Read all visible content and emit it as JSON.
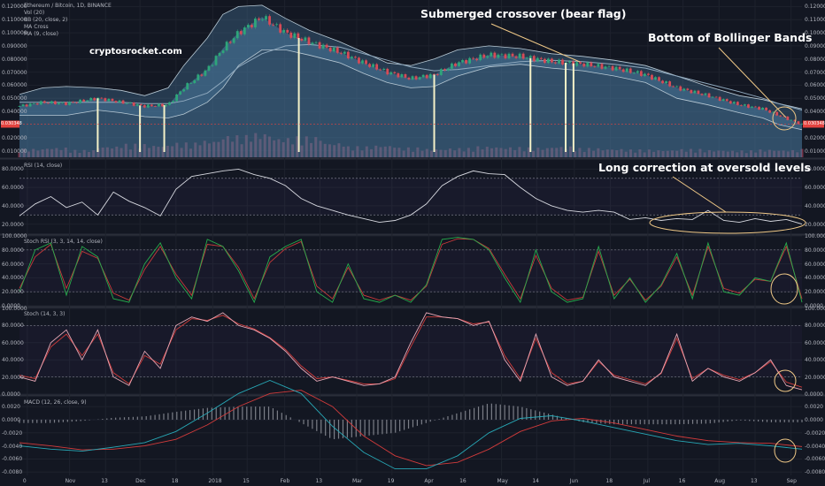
{
  "chart_data": {
    "type": "line",
    "symbol": "Ethereum / Bitcoin, 1D, BINANCE",
    "watermark": "cryptosrocket.com",
    "colors": {
      "background": "#131722",
      "separator": "#2a2e39",
      "up_candle": "#2ea67a",
      "down_candle": "#d64b57",
      "bb_fill": "#4a7ba3",
      "bb_outline": "#b8c9d4",
      "ma_line": "#8fa9be",
      "volume": "#c24a64",
      "rsi_line": "#d7d9e0",
      "stoch_rsi_k": "#27ad4d",
      "stoch_rsi_d": "#c73a3a",
      "stoch_k": "#e6a8b6",
      "stoch_d": "#d23b3b",
      "macd_line": "#27a7b5",
      "signal_line": "#d23b3b",
      "annotation_line": "#f0c987",
      "price_tag": "#e4433f"
    },
    "x_axis": {
      "labels": [
        "0",
        "Nov",
        "13",
        "Dec",
        "18",
        "2018",
        "15",
        "Feb",
        "13",
        "Mar",
        "19",
        "Apr",
        "16",
        "May",
        "14",
        "Jun",
        "18",
        "Jul",
        "16",
        "Aug",
        "13",
        "Sep"
      ],
      "positions": [
        0.01,
        0.064,
        0.11,
        0.154,
        0.2,
        0.247,
        0.291,
        0.339,
        0.384,
        0.431,
        0.476,
        0.523,
        0.568,
        0.616,
        0.661,
        0.709,
        0.755,
        0.803,
        0.848,
        0.894,
        0.94,
        0.986
      ],
      "x_range": [
        0,
        1
      ]
    },
    "panels": [
      {
        "id": "price",
        "legend": [
          "Ethereum / Bitcoin, 1D, BINANCE",
          "Vol (20)",
          "BB (20, close, 2)",
          "MA Cross",
          "MA (9, close)"
        ],
        "y_range": [
          0.005,
          0.125
        ],
        "y_ticks": [
          "0.120000",
          "0.110000",
          "0.100000",
          "0.090000",
          "0.080000",
          "0.070000",
          "0.060000",
          "0.050000",
          "0.040000",
          "0.020000",
          "0.010000"
        ],
        "y_tick_values": [
          0.12,
          0.11,
          0.1,
          0.09,
          0.08,
          0.07,
          0.06,
          0.05,
          0.04,
          0.02,
          0.01
        ],
        "last_price": "0.030348",
        "last_price_value": 0.0303,
        "close_x": [
          0.0,
          0.03,
          0.06,
          0.1,
          0.13,
          0.16,
          0.19,
          0.21,
          0.24,
          0.26,
          0.28,
          0.31,
          0.34,
          0.37,
          0.41,
          0.44,
          0.47,
          0.5,
          0.53,
          0.56,
          0.6,
          0.64,
          0.68,
          0.72,
          0.76,
          0.8,
          0.84,
          0.88,
          0.92,
          0.95,
          0.97,
          1.0
        ],
        "close": [
          0.044,
          0.047,
          0.046,
          0.05,
          0.047,
          0.044,
          0.045,
          0.058,
          0.072,
          0.088,
          0.1,
          0.112,
          0.1,
          0.093,
          0.085,
          0.077,
          0.07,
          0.065,
          0.068,
          0.077,
          0.083,
          0.082,
          0.078,
          0.076,
          0.073,
          0.068,
          0.058,
          0.052,
          0.045,
          0.042,
          0.037,
          0.03
        ],
        "bb_upper": [
          0.053,
          0.058,
          0.059,
          0.058,
          0.056,
          0.052,
          0.058,
          0.075,
          0.096,
          0.114,
          0.12,
          0.121,
          0.111,
          0.102,
          0.093,
          0.085,
          0.077,
          0.075,
          0.08,
          0.087,
          0.09,
          0.088,
          0.084,
          0.082,
          0.079,
          0.075,
          0.067,
          0.059,
          0.052,
          0.049,
          0.046,
          0.042
        ],
        "bb_lower": [
          0.037,
          0.037,
          0.037,
          0.041,
          0.039,
          0.036,
          0.035,
          0.038,
          0.047,
          0.058,
          0.075,
          0.087,
          0.087,
          0.083,
          0.077,
          0.069,
          0.062,
          0.058,
          0.059,
          0.067,
          0.074,
          0.076,
          0.073,
          0.071,
          0.067,
          0.062,
          0.05,
          0.045,
          0.039,
          0.035,
          0.03,
          0.026
        ],
        "ma_slow": [
          0.047,
          0.047,
          0.047,
          0.047,
          0.047,
          0.046,
          0.046,
          0.048,
          0.054,
          0.063,
          0.074,
          0.084,
          0.09,
          0.091,
          0.089,
          0.084,
          0.079,
          0.074,
          0.071,
          0.072,
          0.075,
          0.078,
          0.079,
          0.078,
          0.076,
          0.073,
          0.067,
          0.061,
          0.055,
          0.05,
          0.046,
          0.041
        ],
        "volume": [
          0.35,
          0.4,
          0.3,
          0.45,
          0.55,
          0.5,
          0.6,
          0.7,
          0.9,
          1.0,
          0.8,
          0.85,
          0.6,
          0.45,
          0.5,
          0.4,
          0.35,
          0.38,
          0.45,
          0.42,
          0.4,
          0.45,
          0.38,
          0.35,
          0.32,
          0.3,
          0.34,
          0.3,
          0.28,
          0.32,
          0.3,
          0.34
        ],
        "signal_lines_x": [
          0.1,
          0.154,
          0.185,
          0.357,
          0.53,
          0.653,
          0.698,
          0.708
        ],
        "annotations": [
          {
            "text": "cryptosrocket.com",
            "role": "brand"
          },
          {
            "text": "Submerged crossover (bear flag)",
            "role": "note"
          },
          {
            "text": "Bottom of Bollinger Bands",
            "role": "note"
          }
        ]
      },
      {
        "id": "rsi",
        "legend": [
          "RSI (14, close)"
        ],
        "y_range": [
          10,
          90
        ],
        "y_ticks": [
          "80.0000",
          "60.0000",
          "40.0000",
          "20.0000"
        ],
        "y_tick_values": [
          80,
          60,
          40,
          20
        ],
        "bands": [
          70,
          30
        ],
        "x": [
          0.0,
          0.02,
          0.04,
          0.06,
          0.08,
          0.1,
          0.12,
          0.14,
          0.16,
          0.18,
          0.2,
          0.22,
          0.24,
          0.26,
          0.28,
          0.3,
          0.32,
          0.34,
          0.36,
          0.38,
          0.4,
          0.42,
          0.44,
          0.46,
          0.48,
          0.5,
          0.52,
          0.54,
          0.56,
          0.58,
          0.6,
          0.62,
          0.64,
          0.66,
          0.68,
          0.7,
          0.72,
          0.74,
          0.76,
          0.78,
          0.8,
          0.82,
          0.84,
          0.86,
          0.88,
          0.9,
          0.92,
          0.94,
          0.96,
          0.98,
          1.0
        ],
        "values": [
          29,
          42,
          50,
          38,
          44,
          30,
          55,
          45,
          38,
          29,
          58,
          72,
          75,
          78,
          80,
          74,
          70,
          62,
          48,
          40,
          35,
          30,
          26,
          22,
          24,
          30,
          42,
          62,
          72,
          78,
          75,
          74,
          60,
          48,
          40,
          35,
          33,
          35,
          33,
          25,
          27,
          24,
          26,
          25,
          35,
          24,
          22,
          26,
          23,
          25,
          20
        ],
        "annotations": [
          {
            "text": "Long correction at oversold levels",
            "role": "note"
          }
        ]
      },
      {
        "id": "stoch_rsi",
        "legend": [
          "Stoch RSI (3, 3, 14, 14, close)"
        ],
        "y_range": [
          0,
          100
        ],
        "y_ticks": [
          "100.0000",
          "80.0000",
          "60.0000",
          "40.0000",
          "20.0000",
          "0.0000"
        ],
        "y_tick_values": [
          100,
          80,
          60,
          40,
          20,
          0
        ],
        "bands": [
          80,
          20
        ],
        "x": [
          0.0,
          0.02,
          0.04,
          0.06,
          0.08,
          0.1,
          0.12,
          0.14,
          0.16,
          0.18,
          0.2,
          0.22,
          0.24,
          0.26,
          0.28,
          0.3,
          0.32,
          0.34,
          0.36,
          0.38,
          0.4,
          0.42,
          0.44,
          0.46,
          0.48,
          0.5,
          0.52,
          0.54,
          0.56,
          0.58,
          0.6,
          0.62,
          0.64,
          0.66,
          0.68,
          0.7,
          0.72,
          0.74,
          0.76,
          0.78,
          0.8,
          0.82,
          0.84,
          0.86,
          0.88,
          0.9,
          0.92,
          0.94,
          0.96,
          0.98,
          1.0
        ],
        "k": [
          20,
          80,
          90,
          15,
          85,
          70,
          10,
          5,
          60,
          90,
          40,
          10,
          95,
          85,
          50,
          5,
          70,
          85,
          95,
          20,
          5,
          60,
          10,
          5,
          15,
          5,
          30,
          95,
          98,
          95,
          80,
          40,
          5,
          80,
          20,
          5,
          10,
          85,
          10,
          40,
          5,
          30,
          75,
          10,
          90,
          20,
          15,
          40,
          35,
          90,
          5
        ],
        "d": [
          25,
          70,
          88,
          25,
          78,
          68,
          18,
          8,
          52,
          85,
          45,
          15,
          88,
          85,
          55,
          10,
          62,
          82,
          92,
          28,
          10,
          55,
          15,
          8,
          15,
          8,
          28,
          88,
          96,
          95,
          82,
          45,
          10,
          72,
          25,
          8,
          12,
          78,
          15,
          38,
          8,
          28,
          70,
          15,
          85,
          25,
          18,
          38,
          35,
          85,
          10
        ]
      },
      {
        "id": "stoch",
        "legend": [
          "Stoch (14, 3, 3)"
        ],
        "y_range": [
          0,
          100
        ],
        "y_ticks": [
          "100.0000",
          "80.0000",
          "60.0000",
          "40.0000",
          "20.0000",
          "0.0000"
        ],
        "y_tick_values": [
          100,
          80,
          60,
          40,
          20,
          0
        ],
        "bands": [
          80,
          20
        ],
        "x": [
          0.0,
          0.02,
          0.04,
          0.06,
          0.08,
          0.1,
          0.12,
          0.14,
          0.16,
          0.18,
          0.2,
          0.22,
          0.24,
          0.26,
          0.28,
          0.3,
          0.32,
          0.34,
          0.36,
          0.38,
          0.4,
          0.42,
          0.44,
          0.46,
          0.48,
          0.5,
          0.52,
          0.54,
          0.56,
          0.58,
          0.6,
          0.62,
          0.64,
          0.66,
          0.68,
          0.7,
          0.72,
          0.74,
          0.76,
          0.78,
          0.8,
          0.82,
          0.84,
          0.86,
          0.88,
          0.9,
          0.92,
          0.94,
          0.96,
          0.98,
          1.0
        ],
        "k": [
          20,
          15,
          60,
          75,
          40,
          75,
          20,
          10,
          50,
          30,
          80,
          90,
          85,
          95,
          80,
          75,
          65,
          50,
          30,
          15,
          20,
          15,
          10,
          12,
          20,
          60,
          95,
          90,
          88,
          80,
          85,
          40,
          15,
          70,
          20,
          10,
          15,
          40,
          20,
          15,
          10,
          25,
          70,
          15,
          30,
          20,
          15,
          25,
          40,
          10,
          5
        ],
        "d": [
          22,
          18,
          55,
          70,
          45,
          70,
          25,
          12,
          45,
          35,
          75,
          88,
          86,
          92,
          82,
          76,
          66,
          52,
          33,
          18,
          20,
          16,
          12,
          12,
          18,
          55,
          90,
          90,
          88,
          82,
          84,
          45,
          18,
          65,
          25,
          12,
          15,
          38,
          22,
          17,
          12,
          24,
          65,
          18,
          30,
          22,
          17,
          25,
          38,
          14,
          8
        ]
      },
      {
        "id": "macd",
        "legend": [
          "MACD (12, 26, close, 9)"
        ],
        "y_range": [
          -0.0085,
          0.0035
        ],
        "y_ticks": [
          "0.0020",
          "0.0000",
          "-0.0020",
          "-0.0040",
          "-0.0060",
          "-0.0080"
        ],
        "y_tick_values": [
          0.002,
          0.0,
          -0.002,
          -0.004,
          -0.006,
          -0.008
        ],
        "x": [
          0.0,
          0.04,
          0.08,
          0.12,
          0.16,
          0.2,
          0.24,
          0.28,
          0.32,
          0.36,
          0.4,
          0.44,
          0.48,
          0.52,
          0.56,
          0.6,
          0.64,
          0.68,
          0.72,
          0.76,
          0.8,
          0.84,
          0.88,
          0.92,
          0.96,
          1.0
        ],
        "macd": [
          -0.004,
          -0.0045,
          -0.0048,
          -0.0042,
          -0.0035,
          -0.0018,
          0.001,
          0.004,
          0.006,
          0.004,
          -0.001,
          -0.005,
          -0.0075,
          -0.0075,
          -0.0055,
          -0.002,
          0.0002,
          0.0006,
          -0.0002,
          -0.0012,
          -0.0022,
          -0.0032,
          -0.0038,
          -0.0036,
          -0.004,
          -0.0045
        ],
        "signal": [
          -0.0035,
          -0.004,
          -0.0046,
          -0.0045,
          -0.004,
          -0.003,
          -0.0008,
          0.002,
          0.004,
          0.0045,
          0.002,
          -0.0025,
          -0.0055,
          -0.007,
          -0.0065,
          -0.0045,
          -0.0018,
          -0.0002,
          0.0002,
          -0.0005,
          -0.0015,
          -0.0025,
          -0.0032,
          -0.0035,
          -0.0036,
          -0.0041
        ],
        "histogram": [
          -0.0005,
          -0.0005,
          -0.0002,
          0.0003,
          0.0005,
          0.0012,
          0.0018,
          0.002,
          0.002,
          -0.0005,
          -0.003,
          -0.0025,
          -0.002,
          -0.0005,
          0.001,
          0.0025,
          0.002,
          0.0008,
          -0.0004,
          -0.0007,
          -0.0007,
          -0.0007,
          -0.0006,
          -0.0001,
          -0.0004,
          -0.0004
        ]
      }
    ]
  }
}
